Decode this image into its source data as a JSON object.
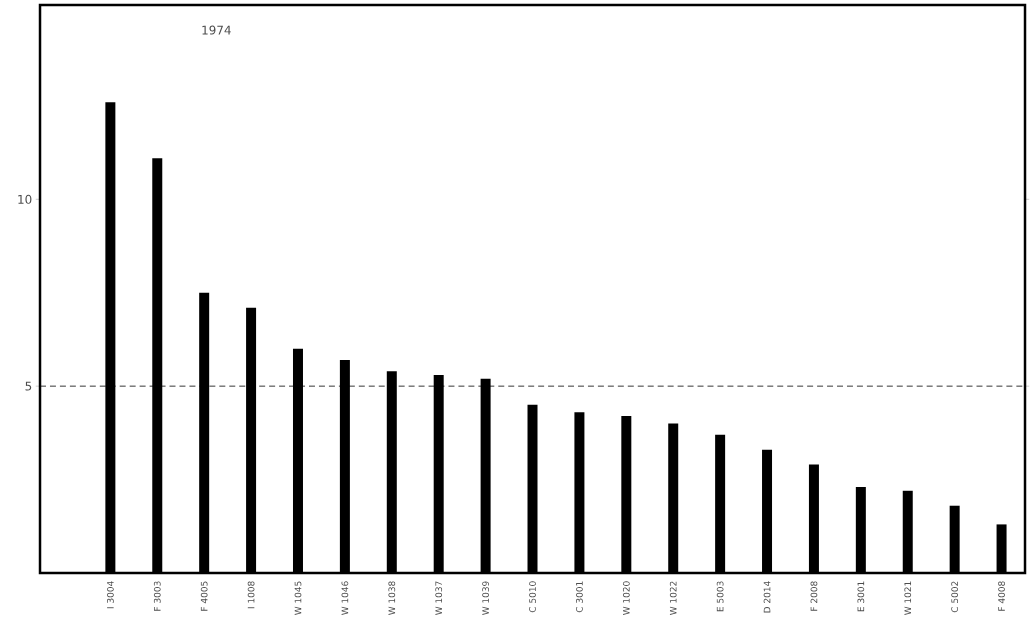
{
  "chart_data": {
    "type": "bar",
    "categories": [
      "I 3004",
      "F 3003",
      "F 4005",
      "I 1008",
      "W 1045",
      "W 1046",
      "W 1038",
      "W 1037",
      "W 1039",
      "C 5010",
      "C 3001",
      "W 1020",
      "W 1022",
      "E 5003",
      "D 2014",
      "F 2008",
      "E 3001",
      "W 1021",
      "C 5002",
      "F 4008"
    ],
    "values": [
      12.6,
      11.1,
      7.5,
      7.1,
      6.0,
      5.7,
      5.4,
      5.3,
      5.2,
      4.5,
      4.3,
      4.2,
      4.0,
      3.7,
      3.3,
      2.9,
      2.3,
      2.2,
      1.8,
      1.3
    ],
    "color": "#000000",
    "ylim": [
      0,
      15.2
    ],
    "yticks": [
      5,
      10
    ],
    "ref_lines": [
      {
        "axis": "y",
        "value": 5,
        "line_style": "dashed"
      }
    ],
    "annotations": [
      "1974"
    ],
    "grid": false
  }
}
